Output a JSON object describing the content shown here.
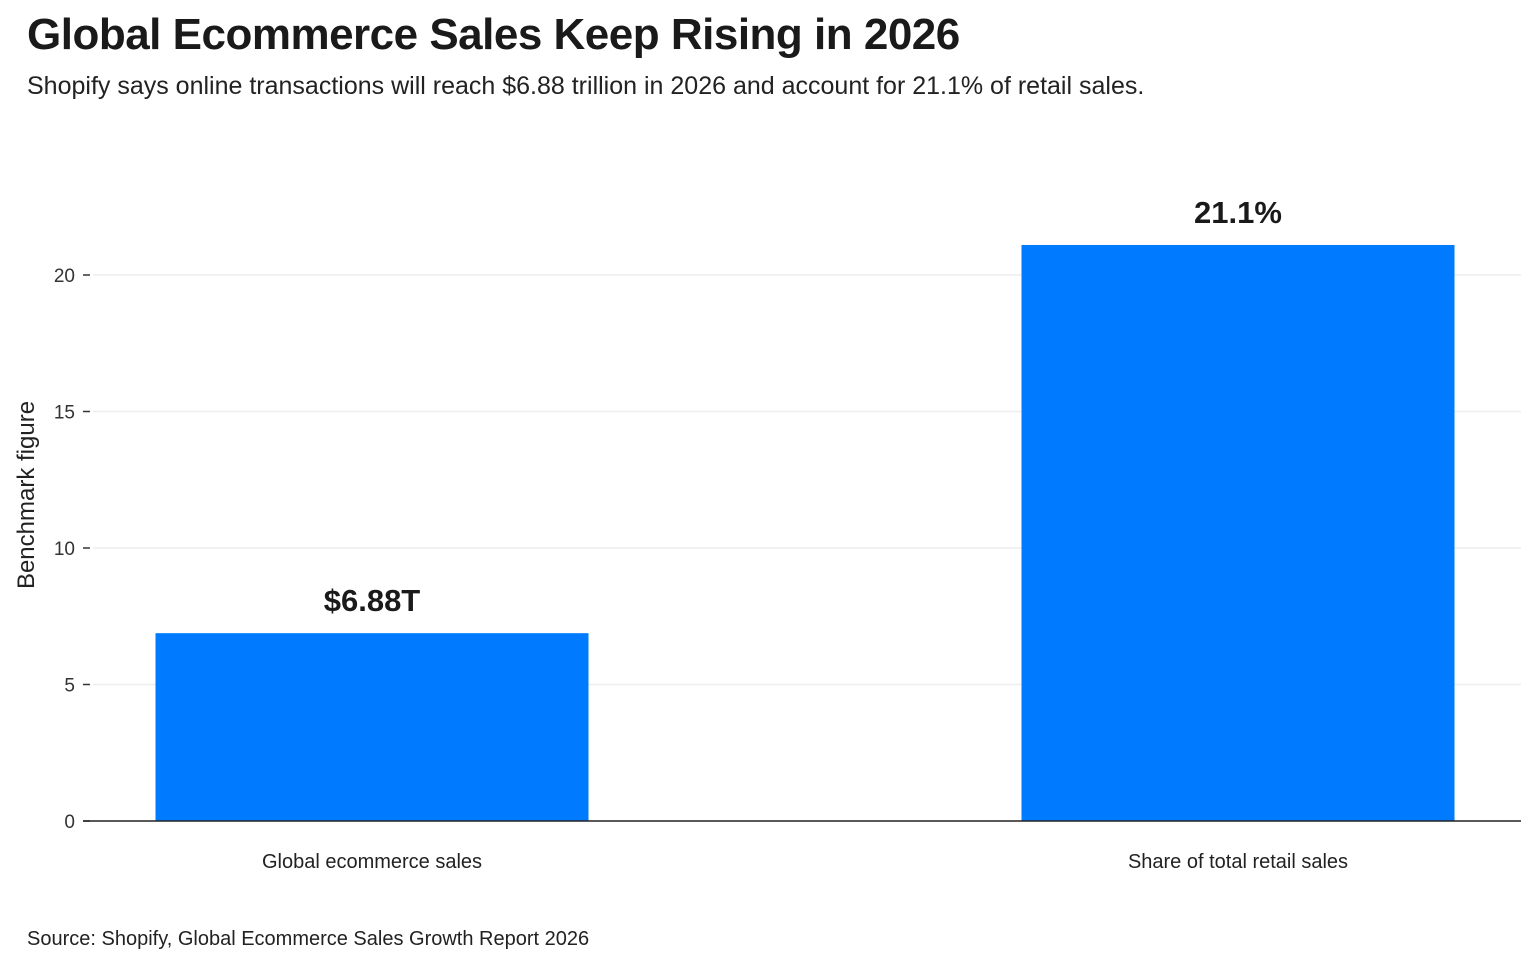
{
  "chart_data": {
    "type": "bar",
    "title": "Global Ecommerce Sales Keep Rising in 2026",
    "subtitle": "Shopify says online transactions will reach $6.88 trillion in 2026 and account for 21.1% of retail sales.",
    "categories": [
      "Global ecommerce sales",
      "Share of total retail sales"
    ],
    "values": [
      6.88,
      21.1
    ],
    "data_labels": [
      "$6.88T",
      "21.1%"
    ],
    "xlabel": "",
    "ylabel": "Benchmark figure",
    "ylim": [
      0,
      22.9
    ],
    "yticks": [
      0,
      5,
      10,
      15,
      20
    ],
    "grid": true,
    "bar_color": "#007BFF",
    "source": "Source: Shopify, Global Ecommerce Sales Growth Report 2026"
  }
}
